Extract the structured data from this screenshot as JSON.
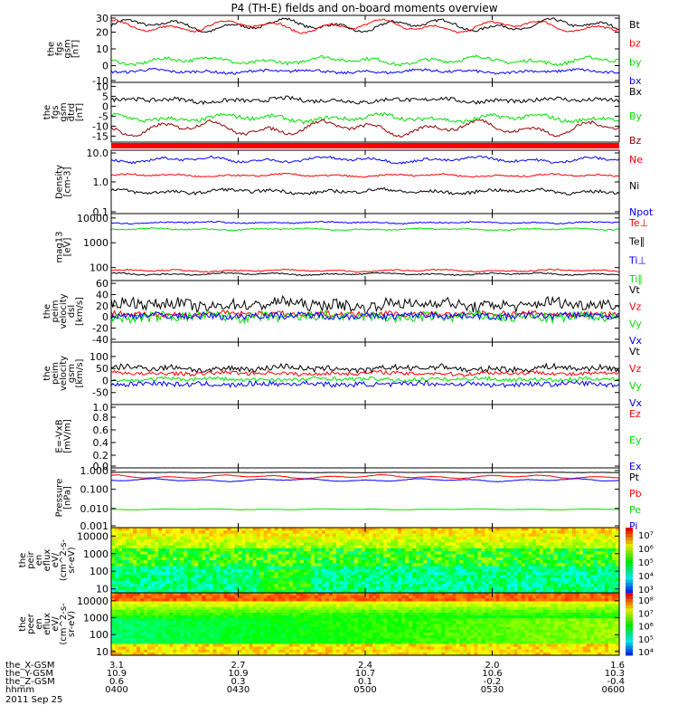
{
  "title": "P4 (TH-E) fields and on-board moments overview",
  "colors": {
    "black": "#000000",
    "red": "#ff0000",
    "green": "#00e000",
    "blue": "#0000ff",
    "darkred": "#900000"
  },
  "footer": {
    "row_labels": [
      "the_X-GSM",
      "the_Y-GSM",
      "the_Z-GSM",
      "hhmm"
    ],
    "date": "2011 Sep 25",
    "columns": [
      {
        "x": "3.1",
        "y": "10.9",
        "z": "0.6",
        "t": "0400"
      },
      {
        "x": "2.7",
        "y": "10.9",
        "z": "0.3",
        "t": "0430"
      },
      {
        "x": "2.4",
        "y": "10.7",
        "z": "0.1",
        "t": "0500"
      },
      {
        "x": "2.0",
        "y": "10.6",
        "z": "-0.2",
        "t": "0530"
      },
      {
        "x": "1.6",
        "y": "10.3",
        "z": "-0.4",
        "t": "0600"
      }
    ]
  },
  "chart_data": [
    {
      "type": "line",
      "panel": "fgs_gsm",
      "ylabel": [
        "the",
        "fgs",
        "gsm",
        "[nT]"
      ],
      "yticks": [
        "30",
        "20",
        "10",
        "0",
        "-10"
      ],
      "ylim": [
        -10,
        30
      ],
      "x": [
        "0400",
        "0430",
        "0500",
        "0530",
        "0600"
      ],
      "series": [
        {
          "name": "Bt",
          "color": "black",
          "level": 24,
          "amp": 4,
          "noise": 0.8
        },
        {
          "name": "bz",
          "color": "red",
          "level": 23.5,
          "amp": 4,
          "noise": 0.6
        },
        {
          "name": "by",
          "color": "green",
          "level": 3,
          "amp": 2.5,
          "noise": 1
        },
        {
          "name": "bx",
          "color": "blue",
          "level": -3.5,
          "amp": 1.2,
          "noise": 0.8
        }
      ]
    },
    {
      "type": "line",
      "panel": "fgs_gsm_dtrend",
      "ylabel": [
        "the",
        "fgs",
        "gsm",
        "dtrd",
        "[nT]"
      ],
      "yticks": [
        "10",
        "5",
        "0",
        "-5",
        "-10",
        "-15"
      ],
      "ylim": [
        -18,
        12
      ],
      "x": [
        "0400",
        "0430",
        "0500",
        "0530",
        "0600"
      ],
      "series": [
        {
          "name": "Bx",
          "color": "black",
          "level": 3,
          "amp": 1.2,
          "noise": 1
        },
        {
          "name": "By",
          "color": "green",
          "level": -6,
          "amp": 2,
          "noise": 1
        },
        {
          "name": "Bz",
          "color": "darkred",
          "level": -11,
          "amp": 4,
          "noise": 0.8
        }
      ]
    },
    {
      "type": "line",
      "panel": "density",
      "ylabel": [
        "Density",
        "[cm-3]"
      ],
      "log": true,
      "yticks": [
        "10.0",
        "1.0",
        "0.1"
      ],
      "ylim": [
        0.1,
        10
      ],
      "x": [
        "0400",
        "0430",
        "0500",
        "0530",
        "0600"
      ],
      "series": [
        {
          "name": "Ne",
          "color": "red",
          "level": 1.6,
          "amp": 0.1,
          "noise": 0.05
        },
        {
          "name": "Ni",
          "color": "black",
          "level": 0.5,
          "amp": 0.15,
          "noise": 0.1
        },
        {
          "name": "Npot",
          "color": "blue",
          "level": 5,
          "amp": 0.2,
          "noise": 0.08
        }
      ]
    },
    {
      "type": "line",
      "panel": "temperature",
      "ylabel": [
        "mag13",
        "[eV]"
      ],
      "log": true,
      "yticks": [
        "10000",
        "1000",
        "100"
      ],
      "ylim": [
        30,
        15000
      ],
      "x": [
        "0400",
        "0430",
        "0500",
        "0530",
        "0600"
      ],
      "series": [
        {
          "name": "Te⊥",
          "color": "red",
          "level": 75,
          "amp": 0.1,
          "noise": 0.05
        },
        {
          "name": "Te∥",
          "color": "black",
          "level": 55,
          "amp": 0.1,
          "noise": 0.05
        },
        {
          "name": "Ti⊥",
          "color": "blue",
          "level": 6500,
          "amp": 0.08,
          "noise": 0.05
        },
        {
          "name": "Ti∥",
          "color": "green",
          "level": 3500,
          "amp": 0.08,
          "noise": 0.05
        }
      ]
    },
    {
      "type": "line",
      "panel": "peim_velocity_dsl",
      "ylabel": [
        "the",
        "peim",
        "velocity",
        "dsl",
        "[km/s]"
      ],
      "yticks": [
        "60",
        "40",
        "20",
        "0",
        "-20",
        "-40"
      ],
      "ylim": [
        -45,
        65
      ],
      "x": [
        "0400",
        "0430",
        "0500",
        "0530",
        "0600"
      ],
      "series": [
        {
          "name": "Vt",
          "color": "black",
          "level": 22,
          "amp": 6,
          "noise": 10
        },
        {
          "name": "Vz",
          "color": "red",
          "level": 5,
          "amp": 2,
          "noise": 5
        },
        {
          "name": "Vy",
          "color": "green",
          "level": 0,
          "amp": 3,
          "noise": 9
        },
        {
          "name": "Vx",
          "color": "blue",
          "level": 2,
          "amp": 2,
          "noise": 6
        }
      ]
    },
    {
      "type": "line",
      "panel": "peim_velocity_gsm",
      "ylabel": [
        "the",
        "peim",
        "velocity",
        "gsm",
        "[km/s]"
      ],
      "yticks": [
        "100",
        "50",
        "0",
        "-50"
      ],
      "ylim": [
        -100,
        160
      ],
      "x": [
        "0400",
        "0430",
        "0500",
        "0530",
        "0600"
      ],
      "series": [
        {
          "name": "Vt",
          "color": "black",
          "level": 50,
          "amp": 10,
          "noise": 12
        },
        {
          "name": "Vz",
          "color": "red",
          "level": 30,
          "amp": 5,
          "noise": 8
        },
        {
          "name": "Vy",
          "color": "green",
          "level": 5,
          "amp": 5,
          "noise": 8
        },
        {
          "name": "Vx",
          "color": "blue",
          "level": -15,
          "amp": 5,
          "noise": 10
        }
      ]
    },
    {
      "type": "line",
      "panel": "efield",
      "ylabel": [
        "E=-VxB",
        "[mV/m]"
      ],
      "yticks": [
        "1.0",
        "0.8",
        "0.6",
        "0.4",
        "0.2",
        "0.0"
      ],
      "ylim": [
        0,
        1
      ],
      "x": [
        "0400",
        "0430",
        "0500",
        "0530",
        "0600"
      ],
      "series": [
        {
          "name": "Ez",
          "color": "red"
        },
        {
          "name": "Ey",
          "color": "green"
        },
        {
          "name": "Ex",
          "color": "blue"
        }
      ]
    },
    {
      "type": "line",
      "panel": "pressure",
      "ylabel": [
        "Pressure",
        "[nPa]"
      ],
      "log": true,
      "yticks": [
        "1.000",
        "0.100",
        "0.010",
        "0.001"
      ],
      "ylim": [
        0.001,
        1.3
      ],
      "x": [
        "0400",
        "0430",
        "0500",
        "0530",
        "0600"
      ],
      "series": [
        {
          "name": "Pt",
          "color": "black",
          "level": 0.75,
          "amp": 0.03,
          "noise": 0.01
        },
        {
          "name": "Pb",
          "color": "red",
          "level": 0.45,
          "amp": 0.2,
          "noise": 0.02
        },
        {
          "name": "Pe",
          "color": "green",
          "level": 0.009,
          "amp": 0.05,
          "noise": 0.01
        },
        {
          "name": "Pi",
          "color": "blue",
          "level": 0.3,
          "amp": 0.15,
          "noise": 0.02
        }
      ]
    },
    {
      "type": "heatmap",
      "panel": "ion_energy_flux",
      "ylabel": [
        "the",
        "peir",
        "en",
        "eflux",
        "eV/",
        "(cm^2-s-",
        "sr-eV)"
      ],
      "yticks": [
        "10000",
        "1000",
        "100",
        "10"
      ],
      "ylim": [
        6,
        30000
      ],
      "colorbar": [
        "10⁷",
        "10⁶",
        "10⁵",
        "10⁴",
        "10³"
      ],
      "x": [
        "0400",
        "0430",
        "0500",
        "0530",
        "0600"
      ]
    },
    {
      "type": "heatmap",
      "panel": "electron_energy_flux",
      "ylabel": [
        "the",
        "peer",
        "en",
        "eflux",
        "eV/",
        "(cm^2-s-",
        "sr-eV)"
      ],
      "yticks": [
        "10000",
        "1000",
        "100",
        "10"
      ],
      "ylim": [
        6,
        30000
      ],
      "colorbar": [
        "10⁸",
        "10⁷",
        "10⁶",
        "10⁵",
        "10⁴"
      ],
      "x": [
        "0400",
        "0430",
        "0500",
        "0530",
        "0600"
      ]
    }
  ]
}
